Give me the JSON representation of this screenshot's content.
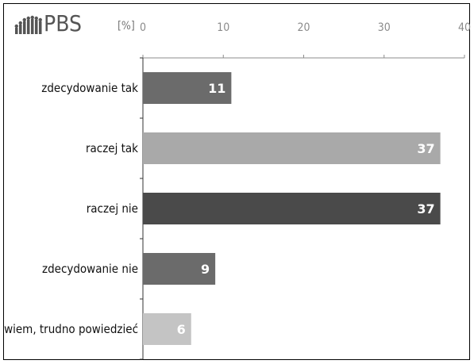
{
  "logo": {
    "text": "PBS",
    "icon": "people-silhouettes-icon"
  },
  "chart_data": {
    "type": "bar",
    "orientation": "horizontal",
    "unit": "[%]",
    "categories": [
      "zdecydowanie tak",
      "raczej tak",
      "raczej nie",
      "zdecydowanie nie",
      "nie wiem, trudno powiedzieć"
    ],
    "values": [
      11,
      37,
      37,
      9,
      6
    ],
    "value_labels": [
      "11",
      "37",
      "37",
      "9",
      "6"
    ],
    "colors": [
      "#6b6b6b",
      "#a9a9a9",
      "#4a4a4a",
      "#6b6b6b",
      "#c4c4c4"
    ],
    "xlim": [
      0,
      40
    ],
    "xticks": [
      0,
      10,
      20,
      30,
      40
    ],
    "xtick_labels": [
      "0",
      "10",
      "20",
      "30",
      "40"
    ],
    "axis_position": "top",
    "grid": false,
    "legend": "none"
  }
}
